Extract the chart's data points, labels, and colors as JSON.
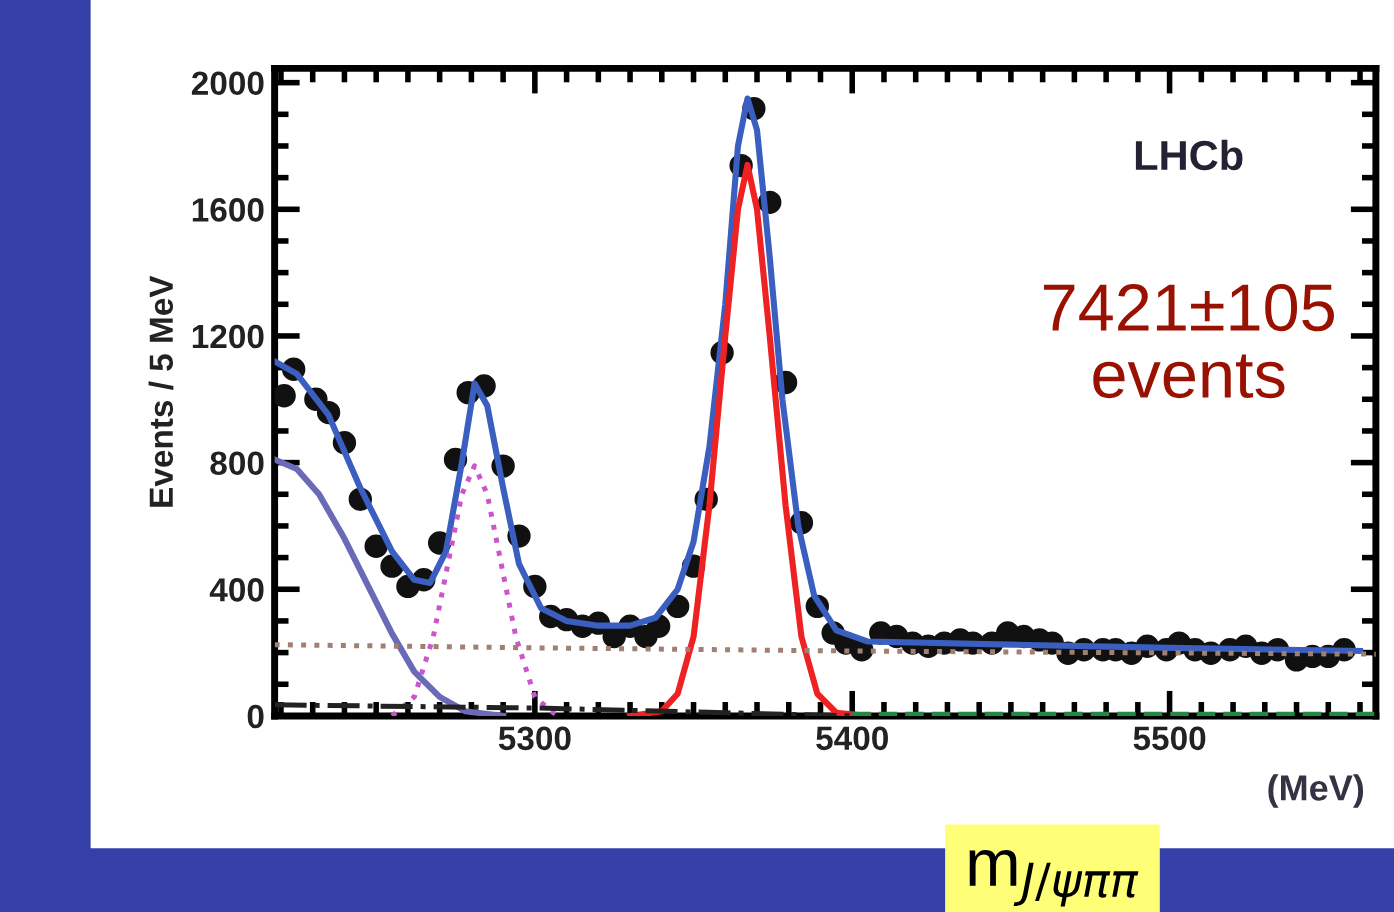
{
  "chart_data": {
    "type": "scatter",
    "ylabel": "Events / 5 MeV",
    "xlabel": "(MeV)",
    "xlim": [
      5218,
      5565
    ],
    "xticks": [
      5300,
      5400,
      5500
    ],
    "ylim": [
      0,
      2045
    ],
    "yticks": [
      0,
      400,
      800,
      1200,
      1600,
      2000
    ],
    "grid": false,
    "annotations": [
      "LHCb",
      "7421±105\nevents",
      "m$_{J/ψππ}$"
    ],
    "series": [
      {
        "color": "#111111",
        "marker": "circle",
        "x": [
          5221,
          5224,
          5231,
          5235,
          5240,
          5245,
          5250,
          5255,
          5260,
          5265,
          5270,
          5275,
          5279,
          5284,
          5290,
          5295,
          5300,
          5305,
          5310,
          5315,
          5320,
          5325,
          5330,
          5335,
          5339,
          5345,
          5350,
          5354,
          5359,
          5365,
          5369,
          5374,
          5379,
          5384,
          5389,
          5394,
          5398,
          5403,
          5409,
          5414,
          5419,
          5424,
          5429,
          5434,
          5438,
          5444,
          5449,
          5454,
          5459,
          5463,
          5468,
          5473,
          5479,
          5483,
          5488,
          5493,
          5499,
          5503,
          5508,
          5513,
          5519,
          5524,
          5529,
          5534,
          5540,
          5545,
          5550,
          5555
        ],
        "values": [
          1011,
          1095,
          1000,
          958,
          863,
          684,
          536,
          473,
          409,
          430,
          546,
          810,
          1021,
          1042,
          789,
          568,
          409,
          314,
          304,
          283,
          293,
          251,
          283,
          251,
          283,
          346,
          473,
          684,
          1147,
          1738,
          1918,
          1622,
          1053,
          610,
          346,
          262,
          230,
          209,
          262,
          251,
          230,
          220,
          230,
          240,
          230,
          230,
          262,
          251,
          240,
          230,
          198,
          209,
          209,
          209,
          198,
          220,
          209,
          230,
          209,
          198,
          209,
          220,
          198,
          209,
          177,
          188,
          188,
          209
        ]
      },
      {
        "type": "line",
        "color": "#3a5fc0",
        "line_style": "solid",
        "x": [
          5218,
          5225,
          5235,
          5245,
          5255,
          5262,
          5267,
          5272,
          5277,
          5281,
          5285,
          5290,
          5295,
          5302,
          5310,
          5320,
          5330,
          5338,
          5345,
          5350,
          5355,
          5360,
          5364,
          5367,
          5370,
          5374,
          5378,
          5383,
          5388,
          5395,
          5405,
          5450,
          5500,
          5560
        ],
        "values": [
          1120,
          1080,
          950,
          720,
          520,
          430,
          420,
          520,
          800,
          1050,
          980,
          720,
          480,
          340,
          300,
          285,
          285,
          310,
          400,
          550,
          850,
          1300,
          1800,
          1950,
          1850,
          1450,
          1000,
          600,
          380,
          270,
          235,
          225,
          215,
          205
        ]
      },
      {
        "type": "line",
        "color": "#ee2222",
        "line_style": "solid",
        "x": [
          5330,
          5340,
          5345,
          5350,
          5355,
          5360,
          5364,
          5367,
          5370,
          5374,
          5379,
          5384,
          5389,
          5395,
          5405
        ],
        "values": [
          0,
          15,
          70,
          250,
          665,
          1200,
          1600,
          1740,
          1600,
          1200,
          665,
          250,
          70,
          10,
          0
        ]
      },
      {
        "type": "line",
        "color": "#cc55cc",
        "line_style": "dotted",
        "x": [
          5255,
          5262,
          5268,
          5272,
          5277,
          5281,
          5285,
          5290,
          5294,
          5300,
          5307
        ],
        "values": [
          0,
          60,
          250,
          450,
          700,
          790,
          700,
          450,
          250,
          60,
          0
        ]
      },
      {
        "type": "line",
        "color": "#6a6ab8",
        "line_style": "solid",
        "x": [
          5218,
          5225,
          5232,
          5240,
          5248,
          5255,
          5262,
          5270,
          5278,
          5290
        ],
        "values": [
          810,
          780,
          700,
          560,
          400,
          260,
          140,
          60,
          15,
          0
        ]
      },
      {
        "type": "line",
        "color": "#a08070",
        "line_style": "dotted",
        "x": [
          5218,
          5300,
          5400,
          5565
        ],
        "values": [
          225,
          215,
          205,
          195
        ]
      },
      {
        "type": "line",
        "color": "#222222",
        "line_style": "dashdot",
        "x": [
          5218,
          5300,
          5360,
          5400
        ],
        "values": [
          35,
          25,
          10,
          0
        ]
      },
      {
        "type": "line",
        "color": "#228844",
        "line_style": "dashed",
        "x": [
          5400,
          5565
        ],
        "values": [
          5,
          5
        ]
      }
    ]
  }
}
